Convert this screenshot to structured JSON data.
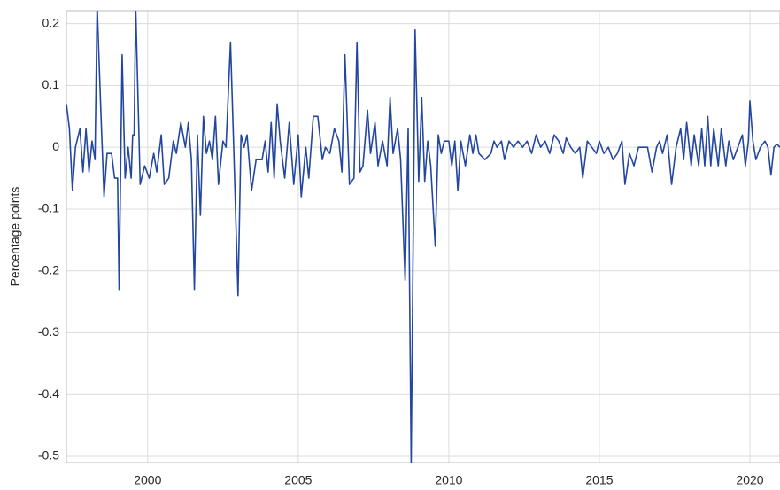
{
  "chart_data": {
    "type": "line",
    "ylabel": "Percentage points",
    "x": [
      1997.3,
      1997.4,
      1997.5,
      1997.6,
      1997.75,
      1997.85,
      1997.95,
      1998.05,
      1998.15,
      1998.25,
      1998.32,
      1998.45,
      1998.55,
      1998.65,
      1998.8,
      1998.9,
      1999.0,
      1999.05,
      1999.15,
      1999.25,
      1999.35,
      1999.45,
      1999.5,
      1999.55,
      1999.6,
      1999.75,
      1999.9,
      2000.05,
      2000.2,
      2000.3,
      2000.45,
      2000.55,
      2000.7,
      2000.85,
      2000.95,
      2001.1,
      2001.25,
      2001.35,
      2001.45,
      2001.55,
      2001.65,
      2001.75,
      2001.85,
      2001.95,
      2002.05,
      2002.15,
      2002.25,
      2002.35,
      2002.5,
      2002.6,
      2002.75,
      2002.85,
      2003.0,
      2003.1,
      2003.2,
      2003.3,
      2003.45,
      2003.6,
      2003.8,
      2003.9,
      2004.0,
      2004.1,
      2004.2,
      2004.3,
      2004.4,
      2004.55,
      2004.7,
      2004.85,
      2005.0,
      2005.1,
      2005.25,
      2005.35,
      2005.5,
      2005.65,
      2005.8,
      2005.9,
      2006.05,
      2006.2,
      2006.35,
      2006.45,
      2006.55,
      2006.7,
      2006.85,
      2006.95,
      2007.05,
      2007.15,
      2007.3,
      2007.4,
      2007.55,
      2007.65,
      2007.8,
      2007.95,
      2008.05,
      2008.15,
      2008.3,
      2008.4,
      2008.55,
      2008.65,
      2008.75,
      2008.88,
      2009.0,
      2009.1,
      2009.2,
      2009.3,
      2009.4,
      2009.55,
      2009.65,
      2009.75,
      2009.85,
      2010.0,
      2010.1,
      2010.2,
      2010.3,
      2010.4,
      2010.55,
      2010.7,
      2010.8,
      2010.9,
      2011.0,
      2011.2,
      2011.4,
      2011.5,
      2011.6,
      2011.75,
      2011.85,
      2012.0,
      2012.15,
      2012.3,
      2012.45,
      2012.6,
      2012.75,
      2012.9,
      2013.05,
      2013.2,
      2013.35,
      2013.5,
      2013.65,
      2013.8,
      2013.9,
      2014.05,
      2014.2,
      2014.35,
      2014.45,
      2014.6,
      2014.75,
      2014.9,
      2015.0,
      2015.15,
      2015.3,
      2015.45,
      2015.6,
      2015.75,
      2015.85,
      2016.0,
      2016.15,
      2016.3,
      2016.45,
      2016.6,
      2016.75,
      2016.9,
      2017.0,
      2017.1,
      2017.25,
      2017.4,
      2017.55,
      2017.7,
      2017.8,
      2017.9,
      2018.05,
      2018.15,
      2018.3,
      2018.4,
      2018.5,
      2018.6,
      2018.7,
      2018.8,
      2018.95,
      2019.05,
      2019.2,
      2019.3,
      2019.45,
      2019.6,
      2019.75,
      2019.85,
      2019.95,
      2020.0,
      2020.1,
      2020.2,
      2020.35,
      2020.5,
      2020.6,
      2020.7,
      2020.8,
      2020.9,
      2021.0
    ],
    "values": [
      0.07,
      0.03,
      -0.07,
      0,
      0.03,
      -0.04,
      0.03,
      -0.04,
      0.01,
      -0.02,
      0.23,
      0.05,
      -0.08,
      -0.01,
      -0.01,
      -0.05,
      -0.05,
      -0.23,
      0.15,
      -0.05,
      0,
      -0.05,
      0.02,
      0.02,
      0.23,
      -0.06,
      -0.03,
      -0.05,
      -0.01,
      -0.04,
      0.02,
      -0.06,
      -0.05,
      0.01,
      -0.01,
      0.04,
      0,
      0.04,
      -0.02,
      -0.23,
      0.02,
      -0.11,
      0.05,
      -0.01,
      0.01,
      -0.02,
      0.05,
      -0.06,
      0.01,
      0,
      0.17,
      0.01,
      -0.24,
      0.02,
      0,
      0.02,
      -0.07,
      -0.02,
      -0.02,
      0.01,
      -0.04,
      0.04,
      -0.05,
      0.07,
      0.01,
      -0.05,
      0.04,
      -0.06,
      0.02,
      -0.08,
      0,
      -0.05,
      0.05,
      0.05,
      -0.02,
      0,
      -0.01,
      0.03,
      0.01,
      -0.04,
      0.15,
      -0.06,
      -0.05,
      0.17,
      -0.04,
      -0.03,
      0.06,
      -0.01,
      0.04,
      -0.03,
      0.01,
      -0.03,
      0.08,
      -0.01,
      0.03,
      -0.02,
      -0.215,
      0.03,
      -0.51,
      0.19,
      -0.055,
      0.08,
      -0.055,
      0.01,
      -0.03,
      -0.16,
      0.02,
      -0.01,
      0.01,
      0.01,
      -0.03,
      0.01,
      -0.07,
      0.01,
      -0.03,
      0.02,
      -0.01,
      0.02,
      -0.01,
      -0.02,
      -0.01,
      0.01,
      0,
      0.01,
      -0.02,
      0.01,
      0,
      0.01,
      0,
      0.01,
      -0.01,
      0.02,
      0,
      0.01,
      -0.01,
      0.02,
      0.01,
      -0.01,
      0.015,
      0,
      -0.01,
      0,
      -0.05,
      0.01,
      0,
      -0.01,
      0.01,
      -0.01,
      0,
      -0.02,
      -0.01,
      0.01,
      -0.06,
      -0.01,
      -0.03,
      0,
      0,
      0,
      -0.04,
      0,
      0.01,
      -0.01,
      0.02,
      -0.06,
      0,
      0.03,
      -0.02,
      0.04,
      -0.03,
      0.02,
      -0.03,
      0.03,
      -0.03,
      0.05,
      -0.03,
      0.03,
      -0.03,
      0.03,
      -0.03,
      0.01,
      -0.02,
      0,
      0.02,
      -0.03,
      0.01,
      0.075,
      0.01,
      -0.02,
      0,
      0.01,
      0,
      -0.045,
      0,
      0.005,
      0
    ],
    "color": "#2347a0",
    "xlim": [
      1997.3,
      2021.0
    ],
    "ylim": [
      -0.51,
      0.221
    ],
    "xticks": [
      2000,
      2005,
      2010,
      2015,
      2020
    ],
    "yticks": [
      -0.5,
      -0.4,
      -0.3,
      -0.2,
      -0.1,
      0,
      0.1,
      0.2
    ],
    "grid": true
  }
}
